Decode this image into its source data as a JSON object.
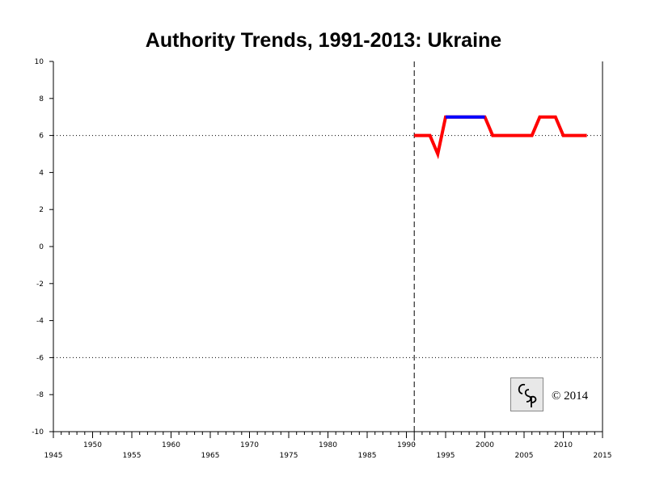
{
  "chart_data": {
    "type": "line",
    "title": "Authority Trends, 1991-2013: Ukraine",
    "xlabel": "",
    "ylabel": "",
    "xlim": [
      1945,
      2015
    ],
    "ylim": [
      -10,
      10
    ],
    "x_ticks_upper": [
      "1950",
      "1960",
      "1970",
      "1980",
      "1990",
      "2000",
      "2010"
    ],
    "x_ticks_lower": [
      "1945",
      "1955",
      "1965",
      "1975",
      "1985",
      "1995",
      "2005",
      "2015"
    ],
    "y_ticks": [
      "10",
      "8",
      "6",
      "4",
      "2",
      "0",
      "-2",
      "-4",
      "-6",
      "-8",
      "-10"
    ],
    "reference_lines_y": [
      6,
      -6
    ],
    "reference_line_x": 1991,
    "series": [
      {
        "color": "#ff0000",
        "points": [
          [
            1991,
            6
          ],
          [
            1993,
            6
          ],
          [
            1994,
            5
          ],
          [
            1995,
            7
          ],
          [
            2000,
            7
          ],
          [
            2001,
            6
          ],
          [
            2006,
            6
          ],
          [
            2007,
            7
          ],
          [
            2009,
            7
          ],
          [
            2010,
            6
          ],
          [
            2013,
            6
          ]
        ]
      },
      {
        "color": "#0000ff",
        "points": [
          [
            1995,
            7
          ],
          [
            2000,
            7
          ]
        ]
      }
    ]
  },
  "footer": {
    "logo_text": "CSP",
    "copyright": "© 2014"
  }
}
